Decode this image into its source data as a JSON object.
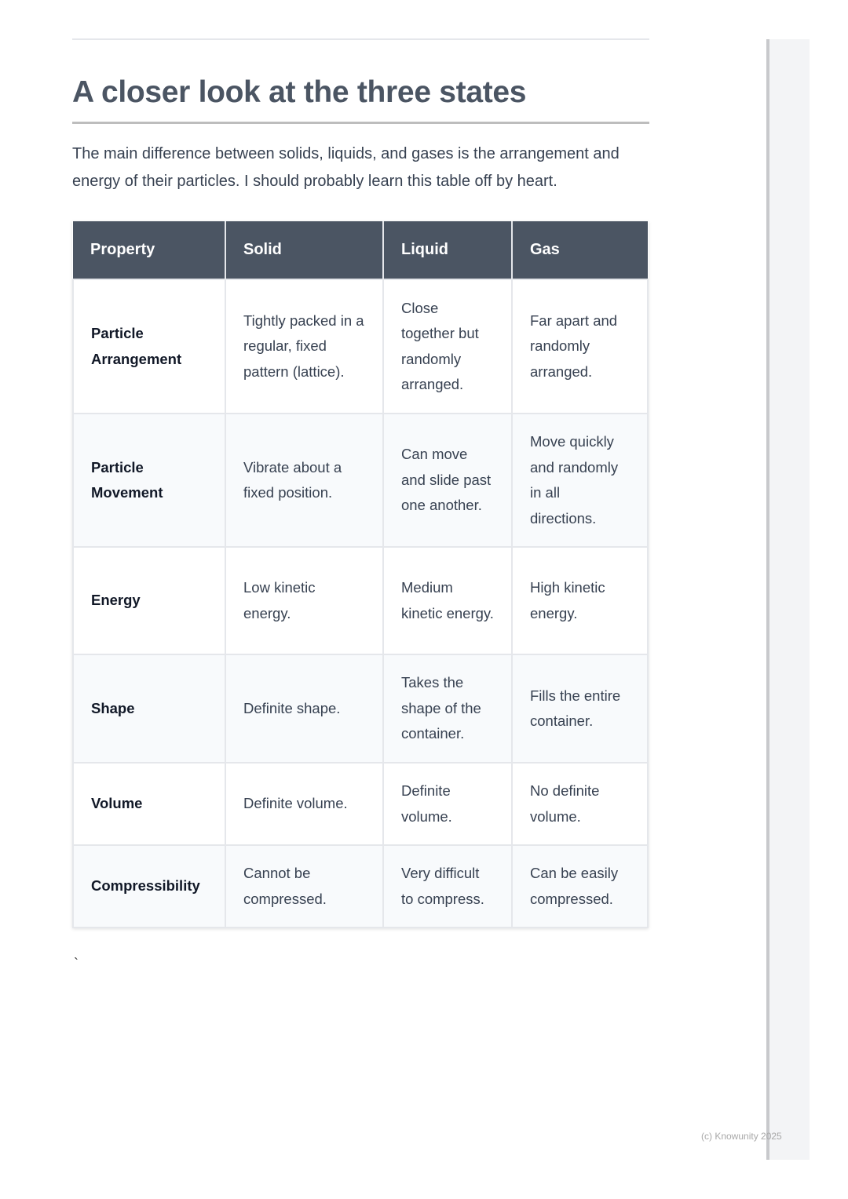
{
  "heading": "A closer look at the three states",
  "intro": "The main difference between solids, liquids, and gases is the arrangement and energy of their particles. I should probably learn this table off by heart.",
  "table": {
    "headers": [
      "Property",
      "Solid",
      "Liquid",
      "Gas"
    ],
    "rows": [
      [
        "Particle Arrangement",
        "Tightly packed in a regular, fixed pattern (lattice).",
        "Close together but randomly arranged.",
        "Far apart and randomly arranged."
      ],
      [
        "Particle Movement",
        "Vibrate about a fixed position.",
        "Can move and slide past one another.",
        "Move quickly and randomly in all directions."
      ],
      [
        "Energy",
        "Low kinetic energy.",
        "Medium kinetic energy.",
        "High kinetic energy."
      ],
      [
        "Shape",
        "Definite shape.",
        "Takes the shape of the container.",
        "Fills the entire container."
      ],
      [
        "Volume",
        "Definite volume.",
        "Definite volume.",
        "No definite volume."
      ],
      [
        "Compressibility",
        "Cannot be compressed.",
        "Very difficult to compress.",
        "Can be easily compressed."
      ]
    ]
  },
  "stray_char": "`",
  "footer": "(c) Knowunity 2025",
  "colors": {
    "header_bg": "#4b5563",
    "alt_row_bg": "#f8fafc",
    "heading": "#4b5563"
  }
}
